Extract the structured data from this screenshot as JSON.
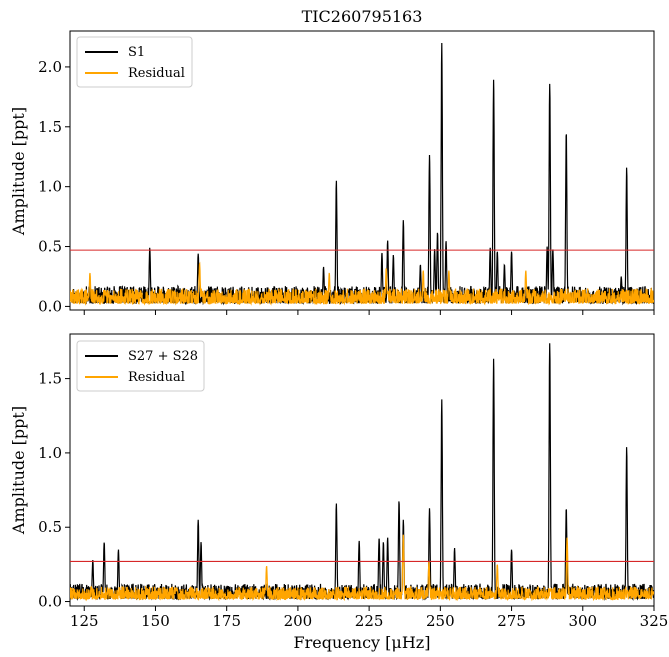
{
  "chart_data": [
    {
      "type": "line",
      "title": "TIC260795163",
      "xlabel": "",
      "ylabel": "Amplitude [ppt]",
      "xlim": [
        120,
        325
      ],
      "ylim": [
        -0.03,
        2.3
      ],
      "x_ticks": [
        125,
        150,
        175,
        200,
        225,
        250,
        275,
        300,
        325
      ],
      "y_ticks": [
        0.0,
        0.5,
        1.0,
        1.5,
        2.0
      ],
      "y_tick_labels": [
        "0.0",
        "0.5",
        "1.0",
        "1.5",
        "2.0"
      ],
      "x_tick_labels_shown": false,
      "threshold": 0.47,
      "threshold_color": "#d62728",
      "legend": "top-left",
      "series": [
        {
          "name": "S1",
          "color": "#000000",
          "peaks": [
            [
              148.0,
              0.49
            ],
            [
              165.0,
              0.44
            ],
            [
              209.0,
              0.33
            ],
            [
              213.5,
              1.05
            ],
            [
              229.5,
              0.45
            ],
            [
              231.5,
              0.55
            ],
            [
              233.5,
              0.43
            ],
            [
              237.0,
              0.72
            ],
            [
              243.0,
              0.35
            ],
            [
              246.2,
              1.27
            ],
            [
              248.0,
              0.48
            ],
            [
              249.0,
              0.62
            ],
            [
              250.5,
              2.2
            ],
            [
              252.0,
              0.55
            ],
            [
              267.5,
              0.49
            ],
            [
              268.7,
              1.9
            ],
            [
              270.0,
              0.46
            ],
            [
              272.5,
              0.35
            ],
            [
              275.0,
              0.46
            ],
            [
              287.5,
              0.5
            ],
            [
              288.4,
              1.86
            ],
            [
              289.5,
              0.48
            ],
            [
              294.2,
              1.46
            ],
            [
              313.5,
              0.25
            ],
            [
              315.4,
              1.16
            ]
          ]
        },
        {
          "name": "Residual",
          "color": "#ffa500",
          "noise_level": 0.15,
          "peaks": [
            [
              127.0,
              0.28
            ],
            [
              165.5,
              0.36
            ],
            [
              211.0,
              0.28
            ],
            [
              231.0,
              0.32
            ],
            [
              244.0,
              0.3
            ],
            [
              253.0,
              0.3
            ],
            [
              280.0,
              0.3
            ]
          ]
        }
      ]
    },
    {
      "type": "line",
      "title": "",
      "xlabel": "Frequency [μHz]",
      "ylabel": "Amplitude [ppt]",
      "xlim": [
        120,
        325
      ],
      "ylim": [
        -0.03,
        1.8
      ],
      "x_ticks": [
        125,
        150,
        175,
        200,
        225,
        250,
        275,
        300,
        325
      ],
      "x_tick_labels": [
        "125",
        "150",
        "175",
        "200",
        "225",
        "250",
        "275",
        "300",
        "325"
      ],
      "y_ticks": [
        0.0,
        0.5,
        1.0,
        1.5
      ],
      "y_tick_labels": [
        "0.0",
        "0.5",
        "1.0",
        "1.5"
      ],
      "threshold": 0.27,
      "threshold_color": "#d62728",
      "legend": "top-left",
      "series": [
        {
          "name": "S27 + S28",
          "color": "#000000",
          "peaks": [
            [
              128.0,
              0.28
            ],
            [
              132.0,
              0.4
            ],
            [
              137.0,
              0.35
            ],
            [
              165.0,
              0.55
            ],
            [
              166.0,
              0.4
            ],
            [
              213.5,
              0.66
            ],
            [
              221.5,
              0.41
            ],
            [
              228.5,
              0.43
            ],
            [
              230.0,
              0.4
            ],
            [
              231.5,
              0.43
            ],
            [
              235.5,
              0.68
            ],
            [
              237.0,
              0.55
            ],
            [
              246.2,
              0.63
            ],
            [
              250.5,
              1.36
            ],
            [
              255.0,
              0.36
            ],
            [
              268.7,
              1.64
            ],
            [
              275.0,
              0.35
            ],
            [
              288.4,
              1.74
            ],
            [
              294.2,
              0.63
            ],
            [
              315.4,
              1.04
            ]
          ]
        },
        {
          "name": "Residual",
          "color": "#ffa500",
          "noise_level": 0.1,
          "peaks": [
            [
              189.0,
              0.24
            ],
            [
              237.0,
              0.45
            ],
            [
              246.0,
              0.27
            ],
            [
              270.0,
              0.25
            ],
            [
              294.5,
              0.43
            ]
          ]
        }
      ]
    }
  ]
}
